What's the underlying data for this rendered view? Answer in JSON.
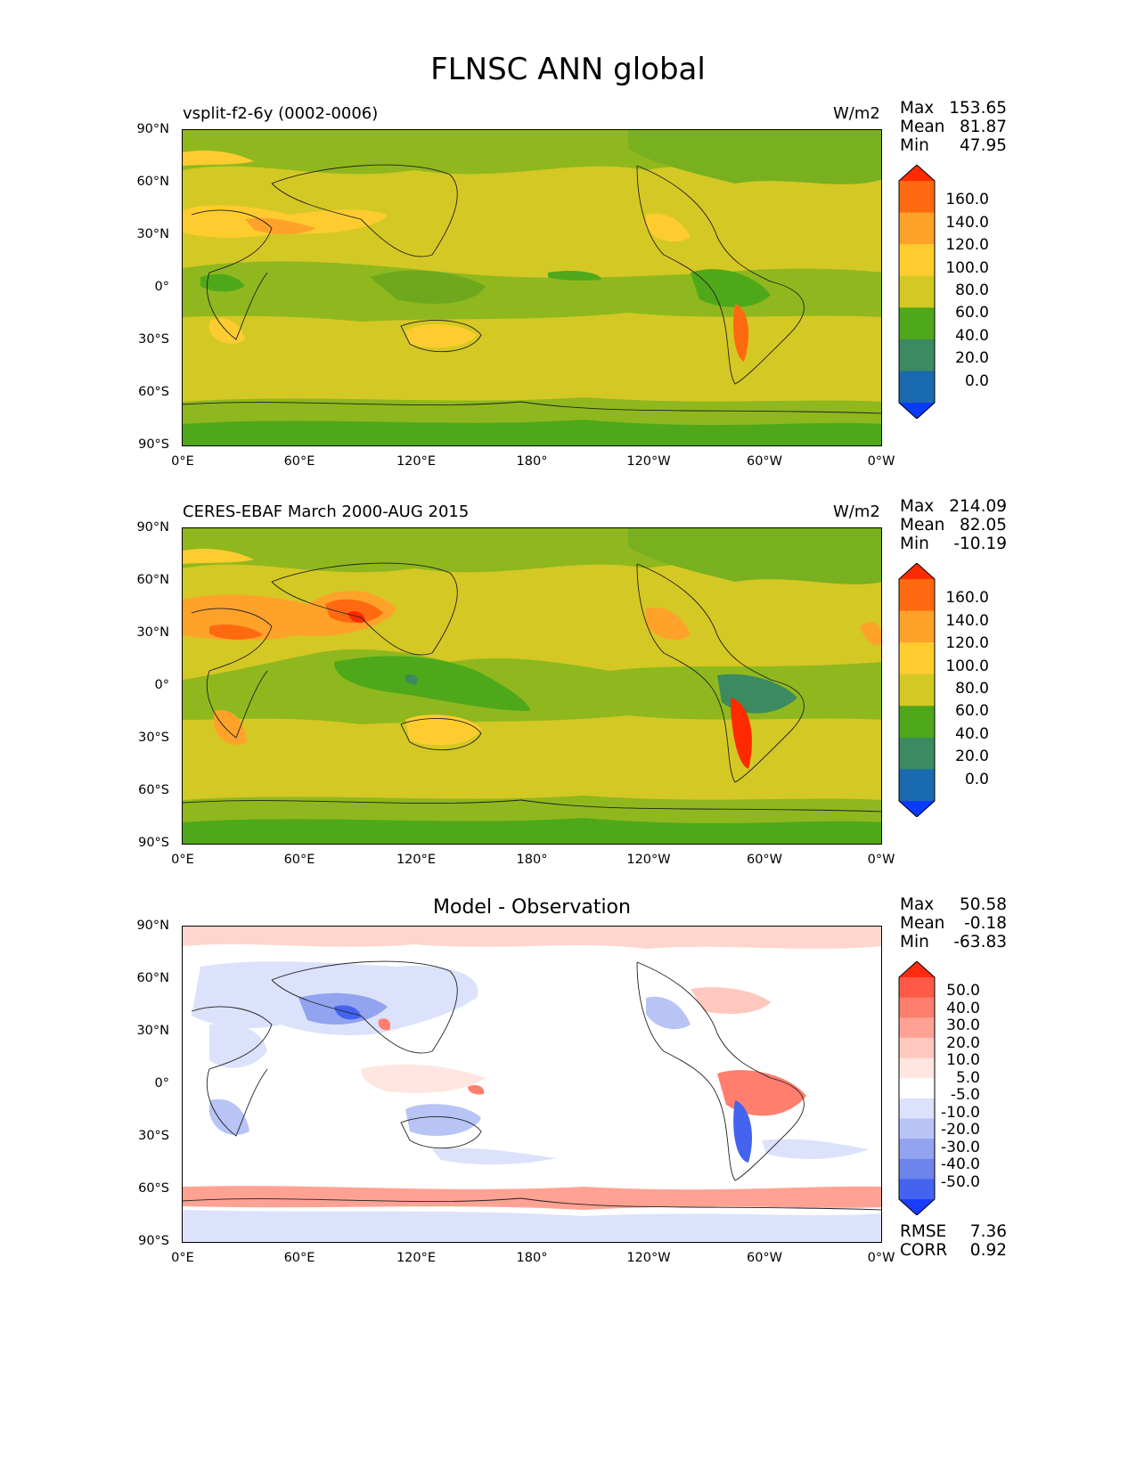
{
  "figure": {
    "title": "FLNSC ANN global",
    "x_ticks": [
      "0°E",
      "60°E",
      "120°E",
      "180°",
      "120°W",
      "60°W",
      "0°W"
    ],
    "y_ticks": [
      "90°N",
      "60°N",
      "30°N",
      "0°",
      "30°S",
      "60°S",
      "90°S"
    ]
  },
  "panels": [
    {
      "left_title": "vsplit-f2-6y (0002-0006)",
      "units": "W/m2",
      "stats": [
        {
          "label": "Max",
          "value": "153.65"
        },
        {
          "label": "Mean",
          "value": "81.87"
        },
        {
          "label": "Min",
          "value": "47.95"
        }
      ],
      "colorbar": {
        "levels": [
          "160.0",
          "140.0",
          "120.0",
          "100.0",
          "80.0",
          "60.0",
          "40.0",
          "20.0",
          "0.0"
        ],
        "colors": [
          "#ff2a00",
          "#ff6a10",
          "#ffa22a",
          "#ffcc30",
          "#d4c824",
          "#4fa81a",
          "#3b8a60",
          "#1a6ab0",
          "#0a3aff"
        ]
      }
    },
    {
      "left_title": "CERES-EBAF March 2000-AUG 2015",
      "units": "W/m2",
      "stats": [
        {
          "label": "Max",
          "value": "214.09"
        },
        {
          "label": "Mean",
          "value": "82.05"
        },
        {
          "label": "Min",
          "value": "-10.19"
        }
      ],
      "colorbar": {
        "levels": [
          "160.0",
          "140.0",
          "120.0",
          "100.0",
          "80.0",
          "60.0",
          "40.0",
          "20.0",
          "0.0"
        ],
        "colors": [
          "#ff2a00",
          "#ff6a10",
          "#ffa22a",
          "#ffcc30",
          "#d4c824",
          "#4fa81a",
          "#3b8a60",
          "#1a6ab0",
          "#0a3aff"
        ]
      }
    },
    {
      "center_title": "Model - Observation",
      "stats": [
        {
          "label": "Max",
          "value": "50.58"
        },
        {
          "label": "Mean",
          "value": "-0.18"
        },
        {
          "label": "Min",
          "value": "-63.83"
        }
      ],
      "bottom_stats": [
        {
          "label": "RMSE",
          "value": "7.36"
        },
        {
          "label": "CORR",
          "value": "0.92"
        }
      ],
      "colorbar": {
        "levels": [
          "50.0",
          "40.0",
          "30.0",
          "20.0",
          "10.0",
          "5.0",
          "-5.0",
          "-10.0",
          "-20.0",
          "-30.0",
          "-40.0",
          "-50.0"
        ],
        "colors": [
          "#ff2a10",
          "#ff5a48",
          "#ff7e6e",
          "#ffa294",
          "#ffc8be",
          "#ffe6e0",
          "#ffffff",
          "#dce2fb",
          "#b8c4f6",
          "#92a4f0",
          "#6c84ec",
          "#4464f0",
          "#1a3cff"
        ]
      }
    }
  ],
  "chart_data": [
    {
      "type": "heatmap",
      "title": "vsplit-f2-6y (0002-0006)",
      "units": "W/m2",
      "x_range": [
        "0°E",
        "0°W"
      ],
      "y_range": [
        "90°S",
        "90°N"
      ],
      "color_levels": [
        0,
        20,
        40,
        60,
        80,
        100,
        120,
        140,
        160
      ],
      "stats": {
        "max": 153.65,
        "mean": 81.87,
        "min": 47.95
      }
    },
    {
      "type": "heatmap",
      "title": "CERES-EBAF March 2000-AUG 2015",
      "units": "W/m2",
      "x_range": [
        "0°E",
        "0°W"
      ],
      "y_range": [
        "90°S",
        "90°N"
      ],
      "color_levels": [
        0,
        20,
        40,
        60,
        80,
        100,
        120,
        140,
        160
      ],
      "stats": {
        "max": 214.09,
        "mean": 82.05,
        "min": -10.19
      }
    },
    {
      "type": "heatmap",
      "title": "Model - Observation",
      "x_range": [
        "0°E",
        "0°W"
      ],
      "y_range": [
        "90°S",
        "90°N"
      ],
      "color_levels": [
        -50,
        -40,
        -30,
        -20,
        -10,
        -5,
        5,
        10,
        20,
        30,
        40,
        50
      ],
      "stats": {
        "max": 50.58,
        "mean": -0.18,
        "min": -63.83,
        "rmse": 7.36,
        "corr": 0.92
      }
    }
  ]
}
